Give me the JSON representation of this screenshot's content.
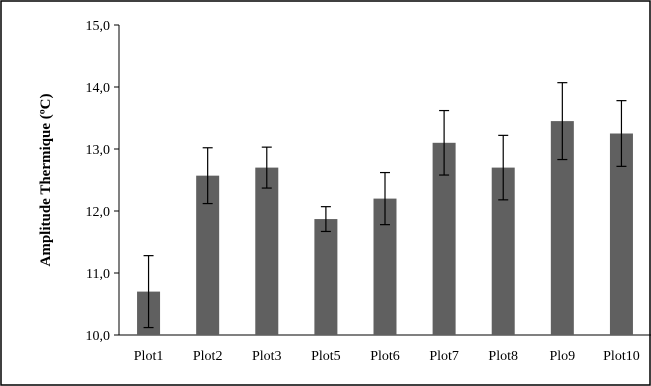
{
  "chart_data": {
    "type": "bar",
    "categories": [
      "Plot1",
      "Plot2",
      "Plot3",
      "Plot5",
      "Plot6",
      "Plot7",
      "Plot8",
      "Plo9",
      "Plot10"
    ],
    "values": [
      10.7,
      12.57,
      12.7,
      11.87,
      12.2,
      13.1,
      12.7,
      13.45,
      13.25
    ],
    "errors": [
      0.58,
      0.45,
      0.33,
      0.2,
      0.42,
      0.52,
      0.52,
      0.62,
      0.53
    ],
    "ylabel": "Amplitude Thermique (ºC)",
    "xlabel": "",
    "title": "",
    "ylim": [
      10.0,
      15.0
    ],
    "yticks": [
      "10,0",
      "11,0",
      "12,0",
      "13,0",
      "14,0",
      "15,0"
    ],
    "ytick_values": [
      10,
      11,
      12,
      13,
      14,
      15
    ],
    "grid": false,
    "bar_color": "#606060",
    "error_bar_color": "#000000"
  }
}
